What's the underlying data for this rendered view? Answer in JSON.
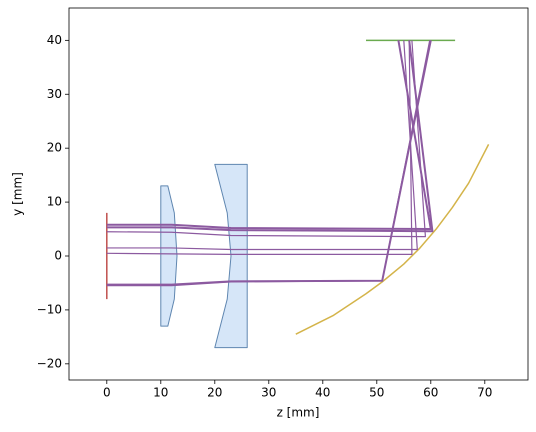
{
  "chart_data": {
    "type": "line",
    "xlabel": "z [mm]",
    "ylabel": "y [mm]",
    "xlim": [
      -7,
      78
    ],
    "ylim": [
      -23,
      46
    ],
    "xticks": [
      0,
      10,
      20,
      30,
      40,
      50,
      60,
      70
    ],
    "yticks": [
      {
        "value": -20,
        "label": "−20"
      },
      {
        "value": -10,
        "label": "−10"
      },
      0,
      10,
      20,
      30,
      40
    ],
    "grid": false,
    "series": [
      {
        "color": "#c0504d",
        "linewidth": 1.5,
        "x": [
          0,
          0
        ],
        "values": [
          8,
          -8
        ]
      },
      {
        "color": "#5f86b0",
        "fill": "#d6e6f8",
        "linewidth": 1,
        "x": [
          10,
          11.3,
          12.5,
          13,
          12.5,
          11.3,
          10,
          10
        ],
        "values": [
          13,
          13,
          8,
          0,
          -8,
          -13,
          -13,
          13
        ]
      },
      {
        "color": "#5f86b0",
        "fill": "#d6e6f8",
        "linewidth": 1,
        "x": [
          20,
          26,
          26,
          20,
          22.3,
          23,
          22.3,
          20
        ],
        "values": [
          17,
          17,
          -17,
          -17,
          -8,
          0,
          8,
          17
        ]
      },
      {
        "color": "#6aaa4f",
        "linewidth": 1.5,
        "x": [
          48,
          64.5
        ],
        "values": [
          40,
          40
        ]
      },
      {
        "color": "#d4b44a",
        "linewidth": 1.5,
        "x": [
          35,
          42,
          48,
          51,
          55,
          58,
          61,
          64,
          67,
          70.7
        ],
        "values": [
          -14.5,
          -11,
          -7,
          -4.8,
          -1.5,
          1.5,
          5,
          9,
          13.5,
          20.7
        ]
      },
      {
        "color": "#8c5aa0",
        "linewidth": 2,
        "x": [
          0,
          12,
          23,
          60,
          54
        ],
        "values": [
          5.8,
          5.8,
          5.2,
          5,
          40
        ]
      },
      {
        "color": "#8c5aa0",
        "linewidth": 2,
        "x": [
          0,
          12,
          23,
          60.3,
          56
        ],
        "values": [
          5.3,
          5.3,
          4.8,
          4.6,
          40
        ]
      },
      {
        "color": "#8c5aa0",
        "linewidth": 1.2,
        "x": [
          0,
          12,
          23,
          59,
          56.5
        ],
        "values": [
          4.5,
          4.4,
          3.8,
          3.6,
          40
        ]
      },
      {
        "color": "#8c5aa0",
        "linewidth": 1.2,
        "x": [
          0,
          12,
          23,
          57.5,
          55
        ],
        "values": [
          1.5,
          1.5,
          1.2,
          1.2,
          40
        ]
      },
      {
        "color": "#8c5aa0",
        "linewidth": 1.2,
        "x": [
          0,
          12,
          23,
          56.5,
          56
        ],
        "values": [
          0.5,
          0.4,
          0.3,
          0.3,
          40
        ]
      },
      {
        "color": "#8c5aa0",
        "linewidth": 2,
        "x": [
          0,
          12,
          23,
          51,
          60
        ],
        "values": [
          -5.3,
          -5.3,
          -4.7,
          -4.6,
          40
        ]
      },
      {
        "color": "#8c5aa0",
        "linewidth": 1.2,
        "x": [
          0,
          12,
          23,
          51,
          59.8
        ],
        "values": [
          -5.5,
          -5.5,
          -4.8,
          -4.6,
          40
        ]
      }
    ]
  }
}
